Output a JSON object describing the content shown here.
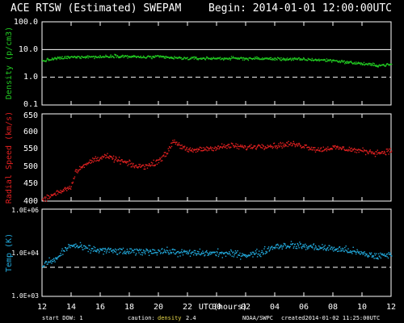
{
  "header": {
    "title": "ACE RTSW (Estimated) SWEPAM",
    "begin": "Begin: 2014-01-01 12:00:00UTC"
  },
  "footer": {
    "start_dow": "start DOW:   1",
    "caution_prefix": "caution:",
    "caution_highlight": "density",
    "caution_suffix": "2.4",
    "source": "NOAA/SWPC",
    "created": "created2014-01-02 11:25:00UTC"
  },
  "colors": {
    "density": "#22cc22",
    "speed": "#e02020",
    "temperature": "#22aadd",
    "axes": "#ffffff"
  },
  "chart_data": {
    "type": "scatter",
    "xlabel": "UTC(hours)",
    "x_ticks": [
      "12",
      "14",
      "16",
      "18",
      "20",
      "22",
      "00",
      "02",
      "04",
      "06",
      "08",
      "10",
      "12"
    ],
    "x_range_hours": [
      12,
      36
    ],
    "panels": [
      {
        "name": "density",
        "ylabel": "Density (p/cm3)",
        "scale": "log",
        "ylim": [
          0.1,
          100
        ],
        "y_ticks": [
          "100.0",
          "10.0",
          "1.0",
          "0.1"
        ],
        "reference_lines": [
          {
            "value": 10,
            "style": "solid"
          },
          {
            "value": 1,
            "style": "dashed"
          }
        ],
        "profile": [
          [
            12,
            4.0
          ],
          [
            13,
            5.0
          ],
          [
            14,
            5.5
          ],
          [
            15,
            5.8
          ],
          [
            16,
            5.6
          ],
          [
            17,
            6.2
          ],
          [
            18,
            5.8
          ],
          [
            19,
            5.5
          ],
          [
            20,
            5.7
          ],
          [
            21,
            5.2
          ],
          [
            22,
            5.0
          ],
          [
            24,
            5.0
          ],
          [
            26,
            5.0
          ],
          [
            28,
            4.8
          ],
          [
            30,
            4.6
          ],
          [
            32,
            4.2
          ],
          [
            33,
            3.6
          ],
          [
            34,
            3.2
          ],
          [
            35,
            2.8
          ],
          [
            36,
            3.0
          ]
        ],
        "spread_decades": 0.08
      },
      {
        "name": "speed",
        "ylabel": "Radial Speed (km/s)",
        "scale": "linear",
        "ylim": [
          400,
          650
        ],
        "y_ticks": [
          "400",
          "450",
          "500",
          "550",
          "600",
          "650"
        ],
        "profile": [
          [
            12,
            405
          ],
          [
            13,
            425
          ],
          [
            14,
            445
          ],
          [
            14.3,
            490
          ],
          [
            14.8,
            500
          ],
          [
            15.5,
            520
          ],
          [
            16.3,
            530
          ],
          [
            17.5,
            515
          ],
          [
            18.5,
            500
          ],
          [
            19.5,
            505
          ],
          [
            20.5,
            535
          ],
          [
            21,
            575
          ],
          [
            22,
            545
          ],
          [
            23,
            550
          ],
          [
            24,
            555
          ],
          [
            25,
            560
          ],
          [
            26,
            555
          ],
          [
            27,
            560
          ],
          [
            28,
            560
          ],
          [
            29,
            565
          ],
          [
            30,
            560
          ],
          [
            31,
            548
          ],
          [
            32,
            555
          ],
          [
            33,
            550
          ],
          [
            34,
            545
          ],
          [
            35,
            540
          ],
          [
            36,
            545
          ]
        ],
        "spread": 12
      },
      {
        "name": "temperature",
        "ylabel": "Temp (K)",
        "scale": "log",
        "ylim": [
          1000,
          1000000
        ],
        "y_ticks": [
          "1.0E+06",
          "1.0E+04",
          "1.0E+03"
        ],
        "reference_lines": [
          {
            "value": 10000,
            "style": "dashed"
          }
        ],
        "profile": [
          [
            12,
            12000
          ],
          [
            13,
            20000
          ],
          [
            14,
            60000
          ],
          [
            15,
            45000
          ],
          [
            16,
            40000
          ],
          [
            18,
            35000
          ],
          [
            20,
            38000
          ],
          [
            22,
            32000
          ],
          [
            24,
            32000
          ],
          [
            26,
            28000
          ],
          [
            27,
            32000
          ],
          [
            28,
            55000
          ],
          [
            29,
            60000
          ],
          [
            30,
            55000
          ],
          [
            31,
            50000
          ],
          [
            32,
            45000
          ],
          [
            33,
            40000
          ],
          [
            34,
            30000
          ],
          [
            35,
            25000
          ],
          [
            36,
            28000
          ]
        ],
        "spread_decades": 0.18
      }
    ]
  }
}
